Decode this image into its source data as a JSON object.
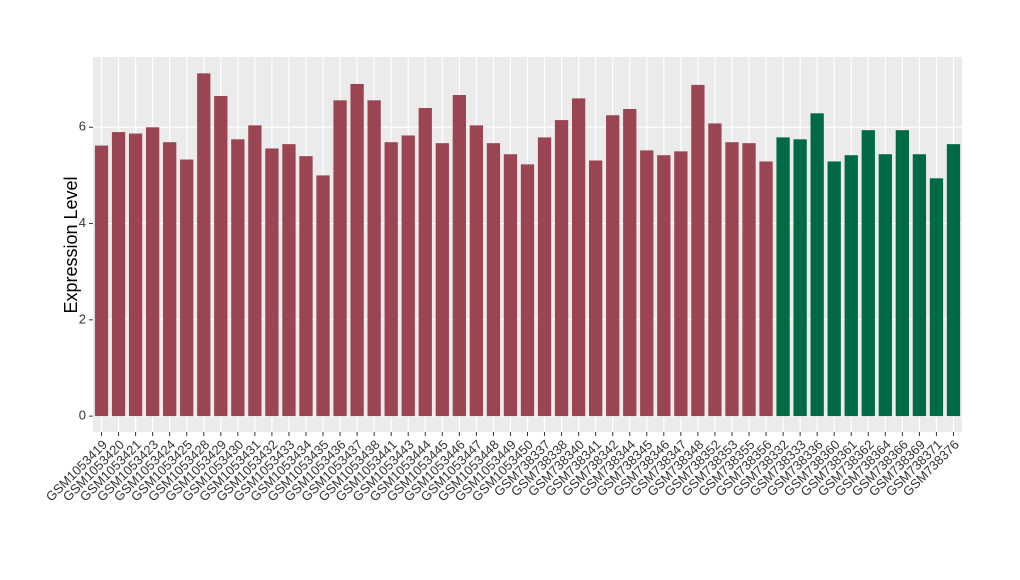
{
  "chart_data": {
    "type": "bar",
    "y_label": "Expression Level",
    "categories": [
      "GSM1053419",
      "GSM1053420",
      "GSM1053421",
      "GSM1053423",
      "GSM1053424",
      "GSM1053425",
      "GSM1053428",
      "GSM1053429",
      "GSM1053430",
      "GSM1053431",
      "GSM1053432",
      "GSM1053433",
      "GSM1053434",
      "GSM1053435",
      "GSM1053436",
      "GSM1053437",
      "GSM1053438",
      "GSM1053441",
      "GSM1053443",
      "GSM1053444",
      "GSM1053445",
      "GSM1053446",
      "GSM1053447",
      "GSM1053448",
      "GSM1053449",
      "GSM1053450",
      "GSM738337",
      "GSM738338",
      "GSM738340",
      "GSM738341",
      "GSM738342",
      "GSM738344",
      "GSM738345",
      "GSM738346",
      "GSM738347",
      "GSM738348",
      "GSM738352",
      "GSM738353",
      "GSM738355",
      "GSM738356",
      "GSM738332",
      "GSM738333",
      "GSM738336",
      "GSM738360",
      "GSM738361",
      "GSM738362",
      "GSM738364",
      "GSM738366",
      "GSM738369",
      "GSM738371",
      "GSM738376"
    ],
    "values": [
      5.62,
      5.9,
      5.87,
      6.0,
      5.69,
      5.33,
      7.12,
      6.65,
      5.75,
      6.04,
      5.56,
      5.65,
      5.4,
      5.0,
      6.56,
      6.9,
      6.56,
      5.69,
      5.83,
      6.4,
      5.67,
      6.67,
      6.04,
      5.67,
      5.44,
      5.23,
      5.79,
      6.15,
      6.6,
      5.31,
      6.25,
      6.38,
      5.52,
      5.42,
      5.5,
      6.88,
      6.08,
      5.69,
      5.67,
      5.29,
      5.79,
      5.75,
      6.29,
      5.29,
      5.42,
      5.94,
      5.44,
      5.94,
      5.44,
      4.94,
      5.65
    ],
    "colors": [
      "#9b4552",
      "#9b4552",
      "#9b4552",
      "#9b4552",
      "#9b4552",
      "#9b4552",
      "#9b4552",
      "#9b4552",
      "#9b4552",
      "#9b4552",
      "#9b4552",
      "#9b4552",
      "#9b4552",
      "#9b4552",
      "#9b4552",
      "#9b4552",
      "#9b4552",
      "#9b4552",
      "#9b4552",
      "#9b4552",
      "#9b4552",
      "#9b4552",
      "#9b4552",
      "#9b4552",
      "#9b4552",
      "#9b4552",
      "#9b4552",
      "#9b4552",
      "#9b4552",
      "#9b4552",
      "#9b4552",
      "#9b4552",
      "#9b4552",
      "#9b4552",
      "#9b4552",
      "#9b4552",
      "#9b4552",
      "#9b4552",
      "#9b4552",
      "#9b4552",
      "#006a45",
      "#006a45",
      "#006a45",
      "#006a45",
      "#006a45",
      "#006a45",
      "#006a45",
      "#006a45",
      "#006a45",
      "#006a45",
      "#006a45"
    ],
    "ylim": [
      -0.33,
      7.46
    ],
    "yticks": [
      0,
      2,
      4,
      6
    ],
    "grid": true
  }
}
